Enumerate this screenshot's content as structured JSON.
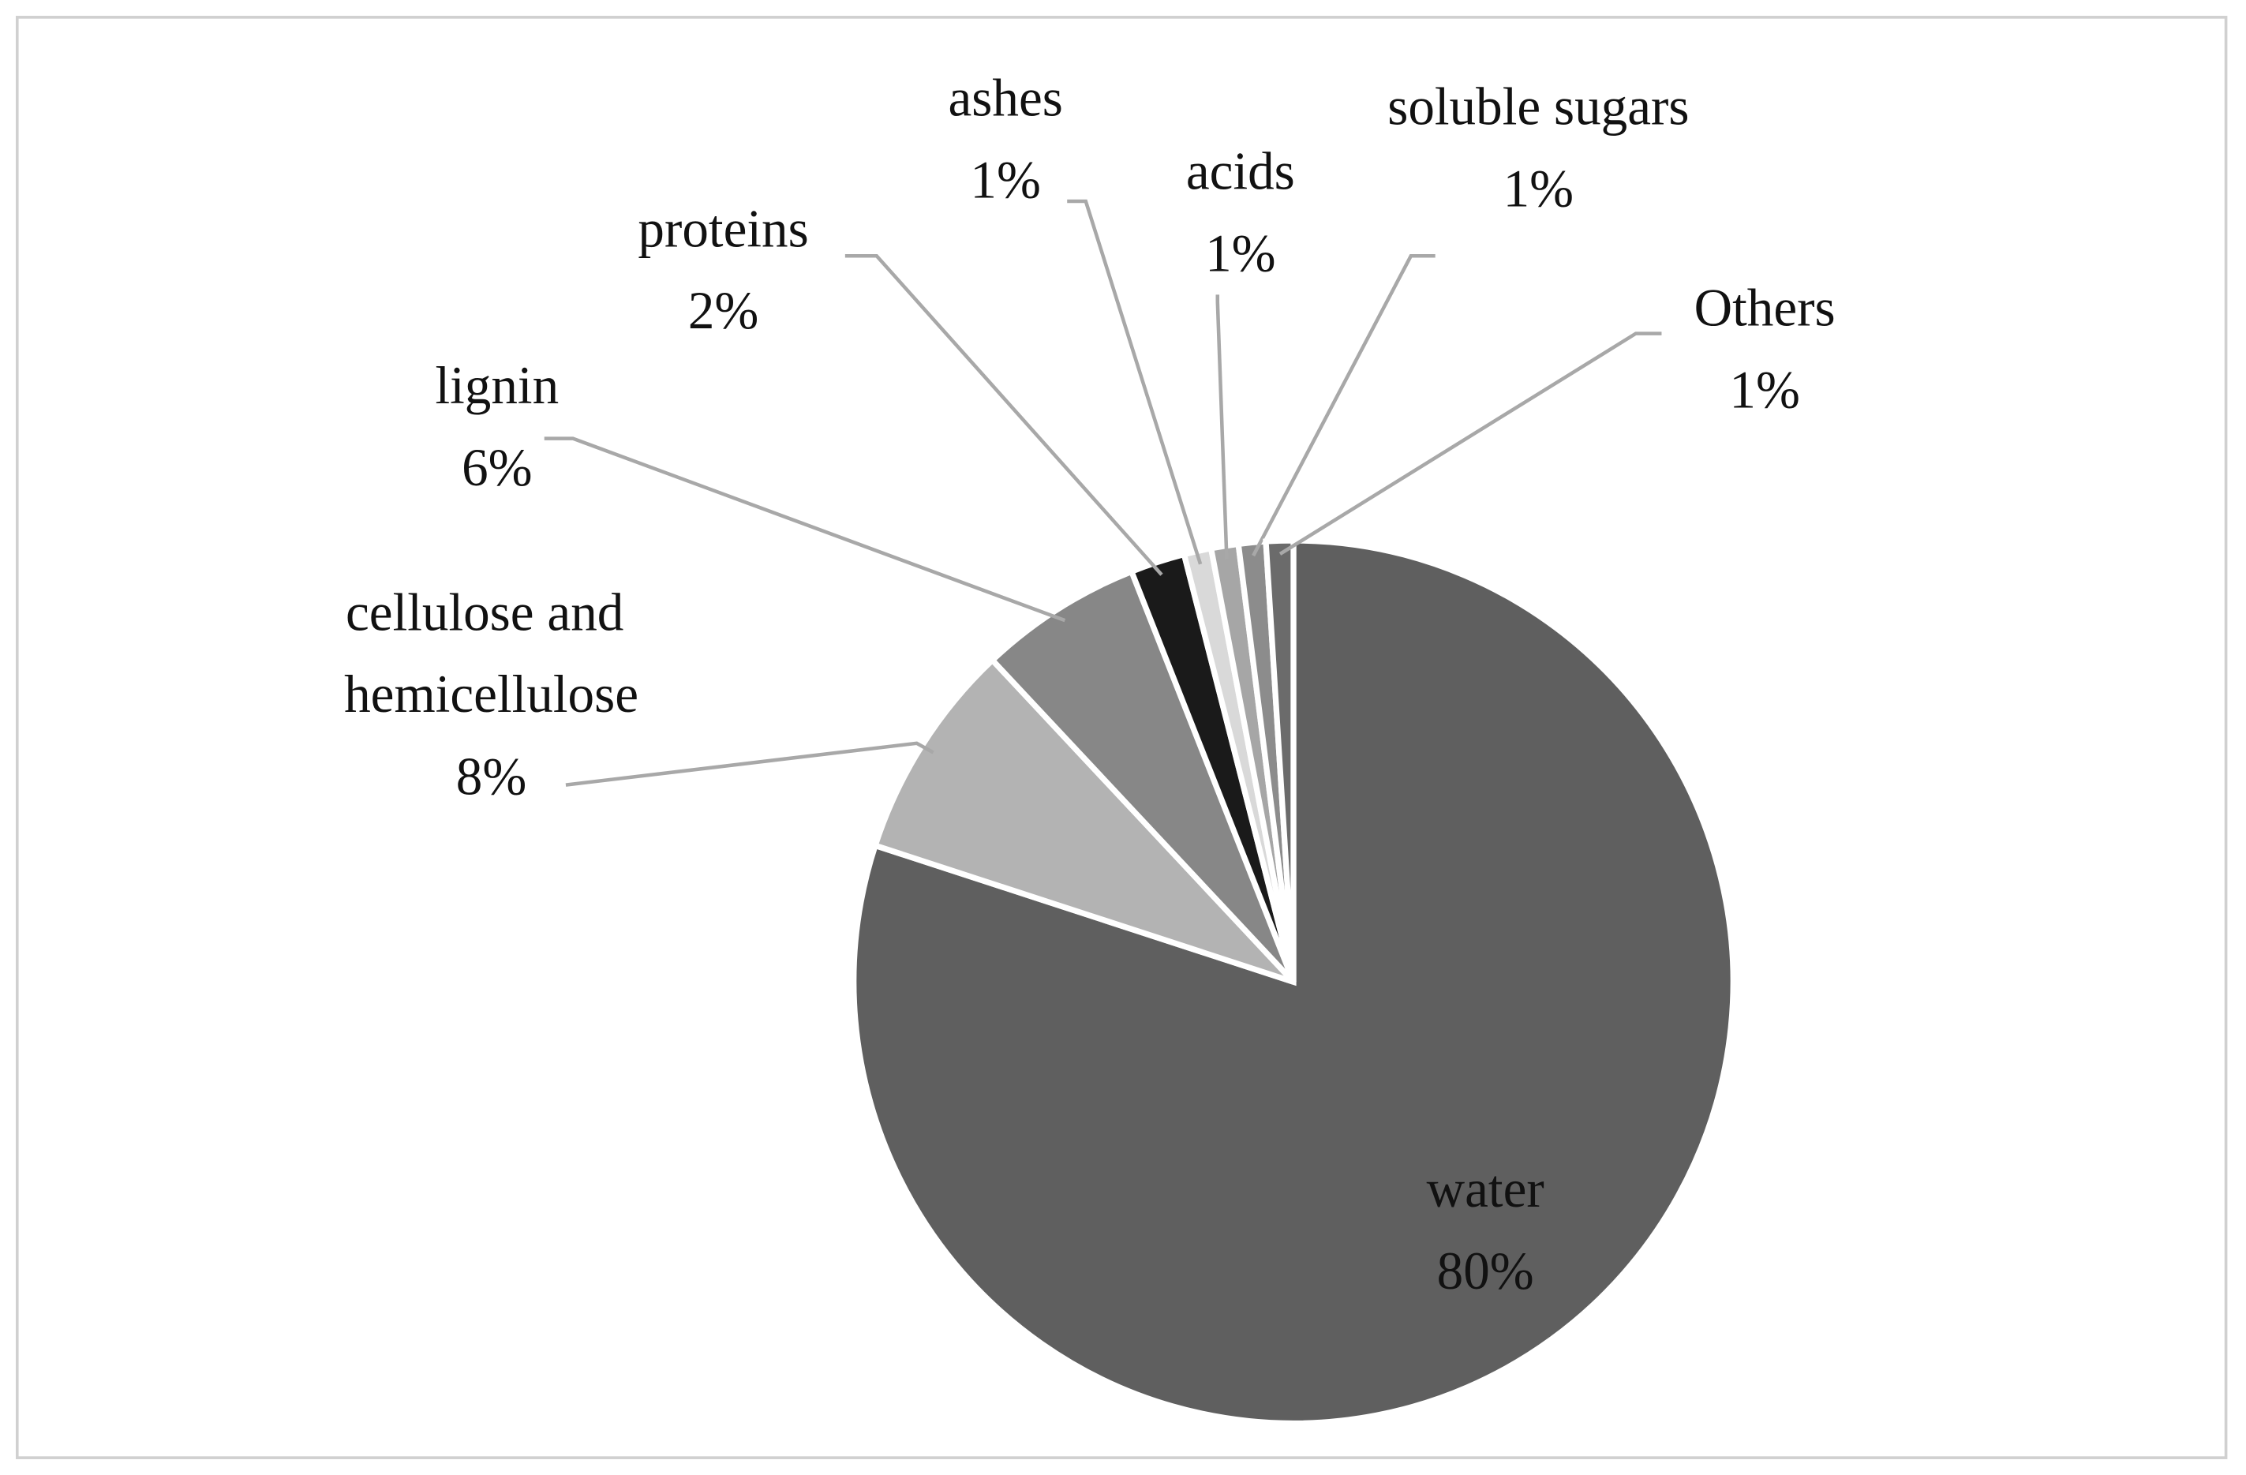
{
  "chart_data": {
    "type": "pie",
    "categories": [
      "water",
      "cellulose and hemicellulose",
      "lignin",
      "proteins",
      "ashes",
      "acids",
      "soluble sugars",
      "Others"
    ],
    "values": [
      80,
      8,
      6,
      2,
      1,
      1,
      1,
      1
    ],
    "value_labels": [
      "80%",
      "8%",
      "6%",
      "2%",
      "1%",
      "1%",
      "1%",
      "1%"
    ],
    "colors": [
      "#5f5f5f",
      "#b3b3b3",
      "#878787",
      "#1a1a1a",
      "#d9d9d9",
      "#a6a6a6",
      "#8c8c8c",
      "#6b6b6b"
    ]
  }
}
